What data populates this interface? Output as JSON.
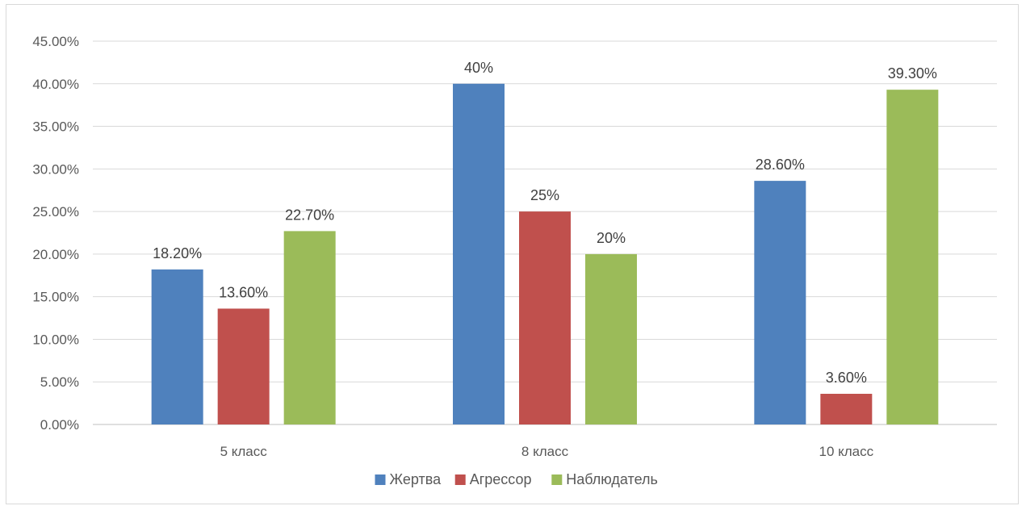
{
  "chart_data": {
    "type": "bar",
    "title": "",
    "xlabel": "",
    "ylabel": "",
    "categories": [
      "5 класс",
      "8 класс",
      "10 класс"
    ],
    "ylim": [
      0,
      45
    ],
    "yticks": [
      0,
      5,
      10,
      15,
      20,
      25,
      30,
      35,
      40,
      45
    ],
    "ytick_labels": [
      "0.00%",
      "5.00%",
      "10.00%",
      "15.00%",
      "20.00%",
      "25.00%",
      "30.00%",
      "35.00%",
      "40.00%",
      "45.00%"
    ],
    "grid": true,
    "legend_position": "bottom",
    "series": [
      {
        "name": "Жертва",
        "color": "#4f81bd",
        "values": [
          18.2,
          40,
          28.6
        ],
        "labels": [
          "18.20%",
          "40%",
          "28.60%"
        ]
      },
      {
        "name": "Агрессор",
        "color": "#c0504d",
        "values": [
          13.6,
          25,
          3.6
        ],
        "labels": [
          "13.60%",
          "25%",
          "3.60%"
        ]
      },
      {
        "name": "Наблюдатель",
        "color": "#9bbb59",
        "values": [
          22.7,
          20,
          39.3
        ],
        "labels": [
          "22.70%",
          "20%",
          "39.30%"
        ]
      }
    ]
  }
}
